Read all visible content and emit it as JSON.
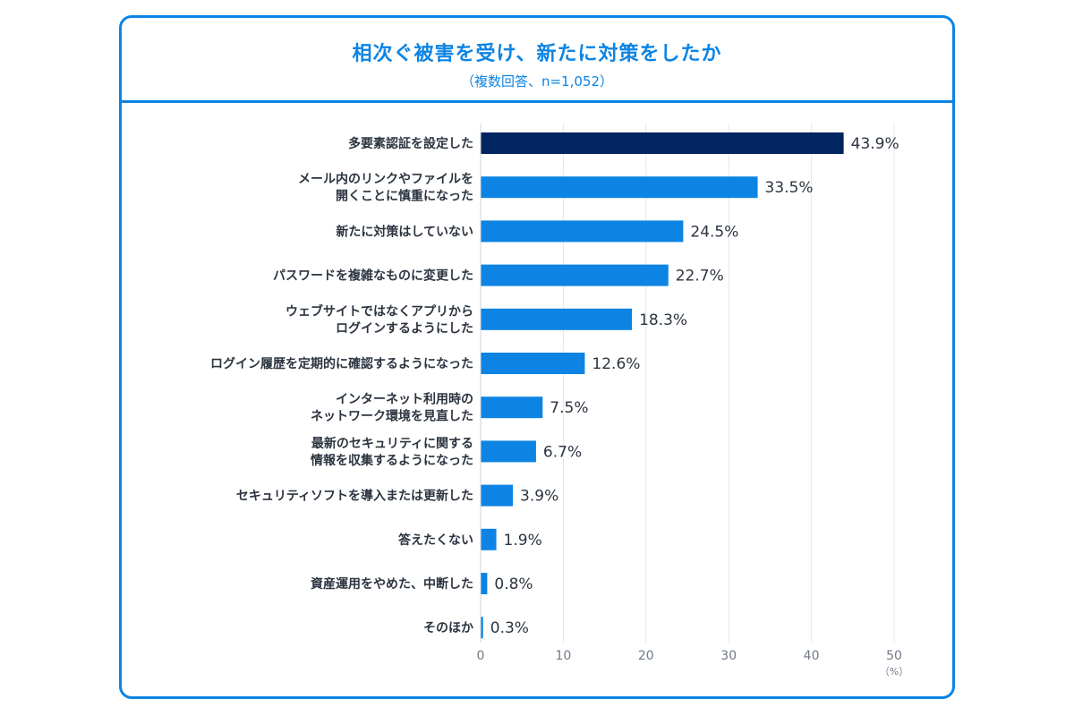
{
  "chart_data": {
    "type": "bar",
    "orientation": "horizontal",
    "title": "相次ぐ被害を受け、新たに対策をしたか",
    "subtitle": "（複数回答、n=1,052）",
    "categories": [
      [
        "多要素認証を設定した"
      ],
      [
        "メール内のリンクやファイルを",
        "開くことに慎重になった"
      ],
      [
        "新たに対策はしていない"
      ],
      [
        "パスワードを複雑なものに変更した"
      ],
      [
        "ウェブサイトではなくアプリから",
        "ログインするようにした"
      ],
      [
        "ログイン履歴を定期的に確認するようになった"
      ],
      [
        "インターネット利用時の",
        "ネットワーク環境を見直した"
      ],
      [
        "最新のセキュリティに関する",
        "情報を収集するようになった"
      ],
      [
        "セキュリティソフトを導入または更新した"
      ],
      [
        "答えたくない"
      ],
      [
        "資産運用をやめた、中断した"
      ],
      [
        "そのほか"
      ]
    ],
    "values": [
      43.9,
      33.5,
      24.5,
      22.7,
      18.3,
      12.6,
      7.5,
      6.7,
      3.9,
      1.9,
      0.8,
      0.3
    ],
    "value_labels": [
      "43.9%",
      "33.5%",
      "24.5%",
      "22.7%",
      "18.3%",
      "12.6%",
      "7.5%",
      "6.7%",
      "3.9%",
      "1.9%",
      "0.8%",
      "0.3%"
    ],
    "highlight_index": 0,
    "colors": {
      "highlight": "#012560",
      "default": "#0d84e3",
      "frame": "#0d84e3",
      "grid": "#e3e6ea"
    },
    "xlim": [
      0,
      50
    ],
    "xticks": [
      0,
      10,
      20,
      30,
      40,
      50
    ],
    "xunit": "（%）",
    "xlabel": "",
    "ylabel": "",
    "grid": true,
    "legend": "none"
  }
}
